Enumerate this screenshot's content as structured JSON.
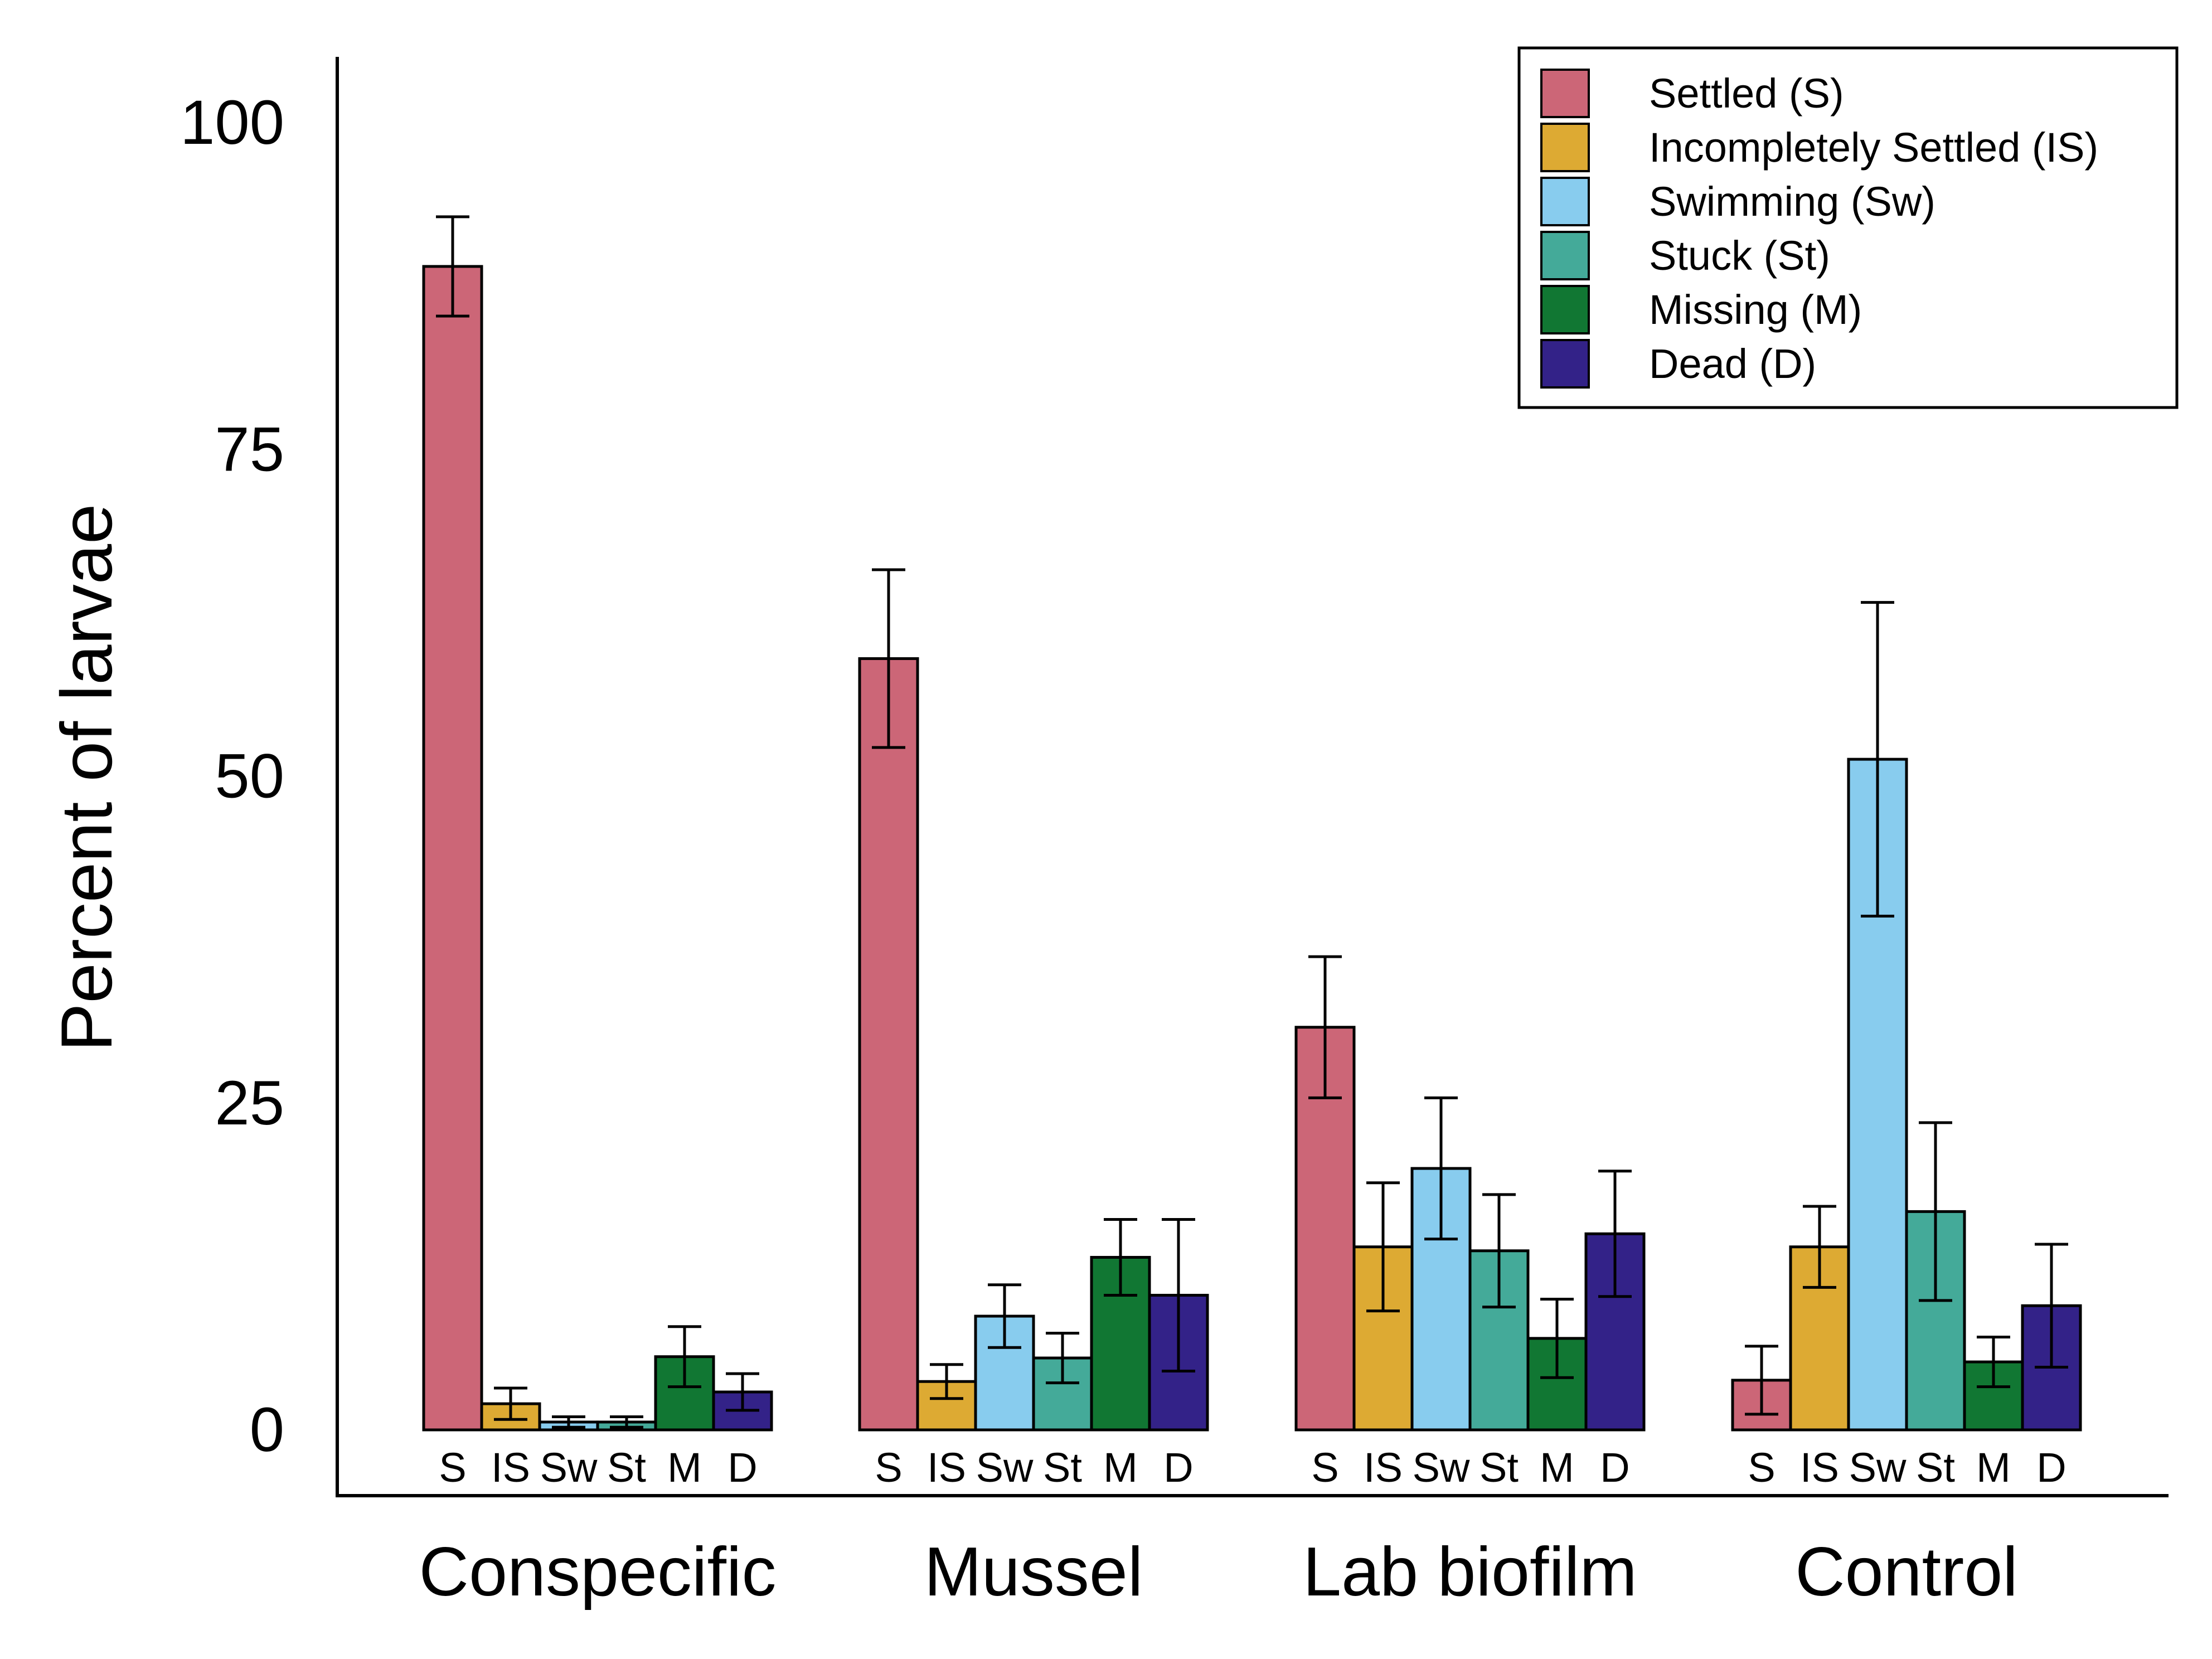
{
  "chart_data": {
    "type": "bar",
    "ylabel": "Percent of larvae",
    "ylim": [
      0,
      100
    ],
    "yticks": [
      0,
      25,
      50,
      75,
      100
    ],
    "groups": [
      "Conspecific",
      "Mussel",
      "Lab biofilm",
      "Control"
    ],
    "bar_labels": [
      "S",
      "IS",
      "Sw",
      "St",
      "M",
      "D"
    ],
    "legend_position": "top-right",
    "error_bars": true,
    "series": [
      {
        "name": "Settled (S)",
        "color": "#CC6677",
        "values": [
          89.0,
          59.0,
          30.8,
          3.8
        ],
        "errors": [
          3.8,
          6.8,
          5.4,
          2.6
        ]
      },
      {
        "name": "Incompletely Settled (IS)",
        "color": "#DDAA33",
        "values": [
          2.0,
          3.7,
          14.0,
          14.0
        ],
        "errors": [
          1.2,
          1.3,
          4.9,
          3.1
        ]
      },
      {
        "name": "Swimming (Sw)",
        "color": "#88CCEE",
        "values": [
          0.6,
          8.7,
          20.0,
          51.3
        ],
        "errors": [
          0.4,
          2.4,
          5.4,
          12.0
        ]
      },
      {
        "name": "Stuck (St)",
        "color": "#44AA99",
        "values": [
          0.6,
          5.5,
          13.7,
          16.7
        ],
        "errors": [
          0.4,
          1.9,
          4.3,
          6.8
        ]
      },
      {
        "name": "Missing (M)",
        "color": "#117733",
        "values": [
          5.6,
          13.2,
          7.0,
          5.2
        ],
        "errors": [
          2.3,
          2.9,
          3.0,
          1.9
        ]
      },
      {
        "name": "Dead (D)",
        "color": "#332288",
        "values": [
          2.9,
          10.3,
          15.0,
          9.5
        ],
        "errors": [
          1.4,
          5.8,
          4.8,
          4.7
        ]
      }
    ]
  }
}
